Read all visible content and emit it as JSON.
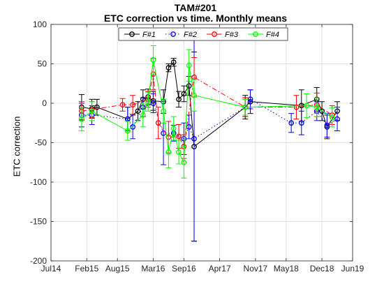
{
  "titles": {
    "line1": "TAM#201",
    "line2": "ETC correction vs time. Monthly means"
  },
  "chart_data": {
    "type": "line",
    "title": "TAM#201 ETC correction vs time. Monthly means",
    "xlabel": "",
    "ylabel": "ETC correction",
    "ylim": [
      -200,
      100
    ],
    "yticks": [
      -200,
      -150,
      -100,
      -50,
      0,
      50,
      100
    ],
    "x_range": [
      "2014-07",
      "2019-06"
    ],
    "xticks": [
      {
        "date": "2014-07",
        "label": "Jul14"
      },
      {
        "date": "2015-02",
        "label": "Feb15"
      },
      {
        "date": "2015-08",
        "label": "Aug15"
      },
      {
        "date": "2016-03",
        "label": "Mar16"
      },
      {
        "date": "2016-09",
        "label": "Sep16"
      },
      {
        "date": "2017-04",
        "label": "Apr17"
      },
      {
        "date": "2017-11",
        "label": "Nov17"
      },
      {
        "date": "2018-05",
        "label": "May18"
      },
      {
        "date": "2018-12",
        "label": "Dec18"
      },
      {
        "date": "2019-06",
        "label": "Jun19"
      }
    ],
    "grid": true,
    "legend_position": "top",
    "series": [
      {
        "name": "F#1",
        "color": "#000000",
        "dash": "solid",
        "points": [
          {
            "x": "2015-01",
            "y": -5,
            "err": 16
          },
          {
            "x": "2015-03",
            "y": -7,
            "err": 12
          },
          {
            "x": "2015-04",
            "y": -5,
            "err": 10
          },
          {
            "x": "2015-10",
            "y": -20,
            "err": 15
          },
          {
            "x": "2015-12",
            "y": -10,
            "err": 12
          },
          {
            "x": "2016-01",
            "y": 5,
            "err": 12
          },
          {
            "x": "2016-02",
            "y": 8,
            "err": 10
          },
          {
            "x": "2016-03",
            "y": 3,
            "err": 12
          },
          {
            "x": "2016-05",
            "y": 2,
            "err": 15
          },
          {
            "x": "2016-06",
            "y": 45,
            "err": 5
          },
          {
            "x": "2016-07",
            "y": 52,
            "err": 5
          },
          {
            "x": "2016-08",
            "y": 5,
            "err": 10
          },
          {
            "x": "2016-09",
            "y": 12,
            "err": 10
          },
          {
            "x": "2016-10",
            "y": 22,
            "err": 12
          },
          {
            "x": "2016-11",
            "y": -55,
            "err": 120
          },
          {
            "x": "2017-09",
            "y": -5,
            "err": 15
          },
          {
            "x": "2017-10",
            "y": 2,
            "err": 15
          },
          {
            "x": "2018-08",
            "y": -3,
            "err": 20
          },
          {
            "x": "2018-11",
            "y": 5,
            "err": 15
          },
          {
            "x": "2018-12",
            "y": -10,
            "err": 12
          },
          {
            "x": "2019-01",
            "y": -30,
            "err": 15
          },
          {
            "x": "2019-03",
            "y": -10,
            "err": 12
          }
        ]
      },
      {
        "name": "F#2",
        "color": "#0000ff",
        "dash": "dot",
        "points": [
          {
            "x": "2015-01",
            "y": -15,
            "err": 15
          },
          {
            "x": "2015-03",
            "y": -15,
            "err": 12
          },
          {
            "x": "2015-10",
            "y": -20,
            "err": 15
          },
          {
            "x": "2015-11",
            "y": -30,
            "err": 15
          },
          {
            "x": "2016-01",
            "y": -5,
            "err": 12
          },
          {
            "x": "2016-03",
            "y": 0,
            "err": 12
          },
          {
            "x": "2016-05",
            "y": -38,
            "err": 40
          },
          {
            "x": "2016-07",
            "y": -38,
            "err": 10
          },
          {
            "x": "2016-09",
            "y": -45,
            "err": 20
          },
          {
            "x": "2016-10",
            "y": -30,
            "err": 15
          },
          {
            "x": "2016-11",
            "y": -45,
            "err": 130
          },
          {
            "x": "2017-09",
            "y": -5,
            "err": 12
          },
          {
            "x": "2017-10",
            "y": 5,
            "err": 12
          },
          {
            "x": "2018-06",
            "y": -25,
            "err": 12
          },
          {
            "x": "2018-08",
            "y": -25,
            "err": 15
          },
          {
            "x": "2018-11",
            "y": -10,
            "err": 12
          },
          {
            "x": "2019-01",
            "y": -28,
            "err": 15
          },
          {
            "x": "2019-03",
            "y": -20,
            "err": 15
          }
        ]
      },
      {
        "name": "F#3",
        "color": "#ff0000",
        "dash": "dashdot",
        "points": [
          {
            "x": "2015-01",
            "y": -10,
            "err": 12
          },
          {
            "x": "2015-03",
            "y": -8,
            "err": 10
          },
          {
            "x": "2015-09",
            "y": -2,
            "err": 8
          },
          {
            "x": "2015-11",
            "y": -2,
            "err": 12
          },
          {
            "x": "2016-02",
            "y": 5,
            "err": 10
          },
          {
            "x": "2016-03",
            "y": 37,
            "err": 20
          },
          {
            "x": "2016-04",
            "y": -25,
            "err": 20
          },
          {
            "x": "2016-06",
            "y": -43,
            "err": 20
          },
          {
            "x": "2016-08",
            "y": -42,
            "err": 15
          },
          {
            "x": "2016-09",
            "y": -55,
            "err": 15
          },
          {
            "x": "2016-11",
            "y": 33,
            "err": 25
          },
          {
            "x": "2017-09",
            "y": -5,
            "err": 12
          },
          {
            "x": "2018-07",
            "y": -5,
            "err": 15
          },
          {
            "x": "2018-11",
            "y": -2,
            "err": 15
          },
          {
            "x": "2019-02",
            "y": -15,
            "err": 12
          }
        ]
      },
      {
        "name": "F#4",
        "color": "#00ff00",
        "dash": "solid",
        "points": [
          {
            "x": "2015-01",
            "y": -20,
            "err": 15
          },
          {
            "x": "2015-03",
            "y": -10,
            "err": 12
          },
          {
            "x": "2015-10",
            "y": -35,
            "err": 12
          },
          {
            "x": "2016-01",
            "y": -15,
            "err": 15
          },
          {
            "x": "2016-02",
            "y": 2,
            "err": 12
          },
          {
            "x": "2016-03",
            "y": 55,
            "err": 18
          },
          {
            "x": "2016-05",
            "y": -10,
            "err": 15
          },
          {
            "x": "2016-06",
            "y": -62,
            "err": 20
          },
          {
            "x": "2016-07",
            "y": -32,
            "err": 15
          },
          {
            "x": "2016-08",
            "y": -62,
            "err": 15
          },
          {
            "x": "2016-09",
            "y": -75,
            "err": 20
          },
          {
            "x": "2016-10",
            "y": 48,
            "err": 20
          },
          {
            "x": "2016-11",
            "y": 10,
            "err": 20
          },
          {
            "x": "2017-09",
            "y": -5,
            "err": 10
          },
          {
            "x": "2018-09",
            "y": -3,
            "err": 15
          },
          {
            "x": "2018-11",
            "y": -5,
            "err": 12
          },
          {
            "x": "2019-02",
            "y": -18,
            "err": 12
          }
        ]
      }
    ]
  }
}
